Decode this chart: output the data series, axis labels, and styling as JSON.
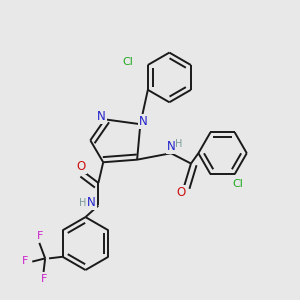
{
  "background_color": "#e8e8e8",
  "bond_color": "#1a1a1a",
  "bond_width": 1.4,
  "atom_colors": {
    "C": "#1a1a1a",
    "N": "#2222cc",
    "O": "#cc1111",
    "Cl": "#22aa22",
    "F": "#cc22cc",
    "H": "#7a9a9a"
  },
  "font_size": 8.5
}
